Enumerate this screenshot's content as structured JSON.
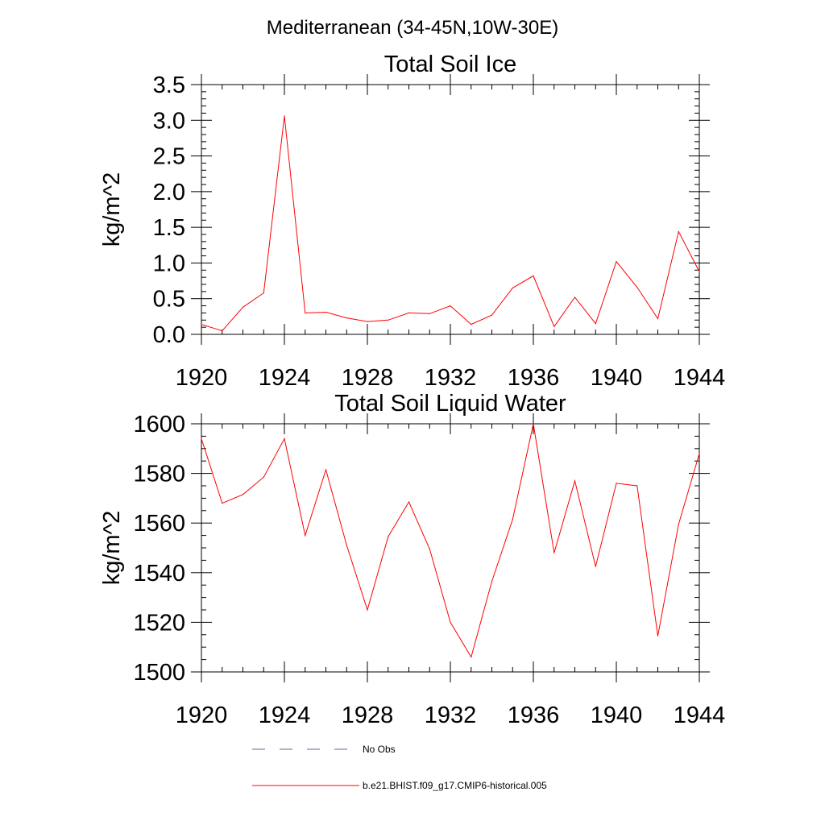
{
  "figure": {
    "suptitle": "Mediterranean (34-45N,10W-30E)"
  },
  "legend": {
    "entries": [
      {
        "label": "No Obs",
        "style": "dashed",
        "color": "#5a6a9a"
      },
      {
        "label": "b.e21.BHIST.f09_g17.CMIP6-historical.005",
        "style": "solid",
        "color": "#ff0000"
      }
    ]
  },
  "chart_data": [
    {
      "type": "line",
      "title": "Total Soil Ice",
      "xlabel": "",
      "ylabel": "kg/m^2",
      "xlim": [
        1920,
        1944
      ],
      "ylim": [
        0.0,
        3.5
      ],
      "xticks": [
        1920,
        1924,
        1928,
        1932,
        1936,
        1940,
        1944
      ],
      "yticks": [
        0.0,
        0.5,
        1.0,
        1.5,
        2.0,
        2.5,
        3.0,
        3.5
      ],
      "yticklabels": [
        "0.0",
        "0.5",
        "1.0",
        "1.5",
        "2.0",
        "2.5",
        "3.0",
        "3.5"
      ],
      "series": [
        {
          "name": "b.e21.BHIST.f09_g17.CMIP6-historical.005",
          "color": "#ff0000",
          "x": [
            1920,
            1921,
            1922,
            1923,
            1924,
            1925,
            1926,
            1927,
            1928,
            1929,
            1930,
            1931,
            1932,
            1933,
            1934,
            1935,
            1936,
            1937,
            1938,
            1939,
            1940,
            1941,
            1942,
            1943,
            1944
          ],
          "values": [
            0.14,
            0.05,
            0.38,
            0.58,
            3.06,
            0.3,
            0.31,
            0.23,
            0.18,
            0.2,
            0.3,
            0.29,
            0.4,
            0.14,
            0.27,
            0.65,
            0.82,
            0.11,
            0.52,
            0.15,
            1.02,
            0.66,
            0.22,
            1.44,
            0.88
          ]
        }
      ]
    },
    {
      "type": "line",
      "title": "Total Soil Liquid Water",
      "xlabel": "",
      "ylabel": "kg/m^2",
      "xlim": [
        1920,
        1944
      ],
      "ylim": [
        1500,
        1600
      ],
      "xticks": [
        1920,
        1924,
        1928,
        1932,
        1936,
        1940,
        1944
      ],
      "yticks": [
        1500,
        1520,
        1540,
        1560,
        1580,
        1600
      ],
      "yticklabels": [
        "1500",
        "1520",
        "1540",
        "1560",
        "1580",
        "1600"
      ],
      "series": [
        {
          "name": "b.e21.BHIST.f09_g17.CMIP6-historical.005",
          "color": "#ff0000",
          "x": [
            1920,
            1921,
            1922,
            1923,
            1924,
            1925,
            1926,
            1927,
            1928,
            1929,
            1930,
            1931,
            1932,
            1933,
            1934,
            1935,
            1936,
            1937,
            1938,
            1939,
            1940,
            1941,
            1942,
            1943,
            1944
          ],
          "values": [
            1594,
            1568,
            1571.5,
            1578.5,
            1594,
            1555,
            1581.5,
            1551,
            1525,
            1554.5,
            1568.5,
            1549.5,
            1520,
            1506,
            1536.5,
            1561.5,
            1600,
            1548,
            1577,
            1542.5,
            1576,
            1575,
            1514.5,
            1559.5,
            1588
          ]
        }
      ]
    }
  ]
}
